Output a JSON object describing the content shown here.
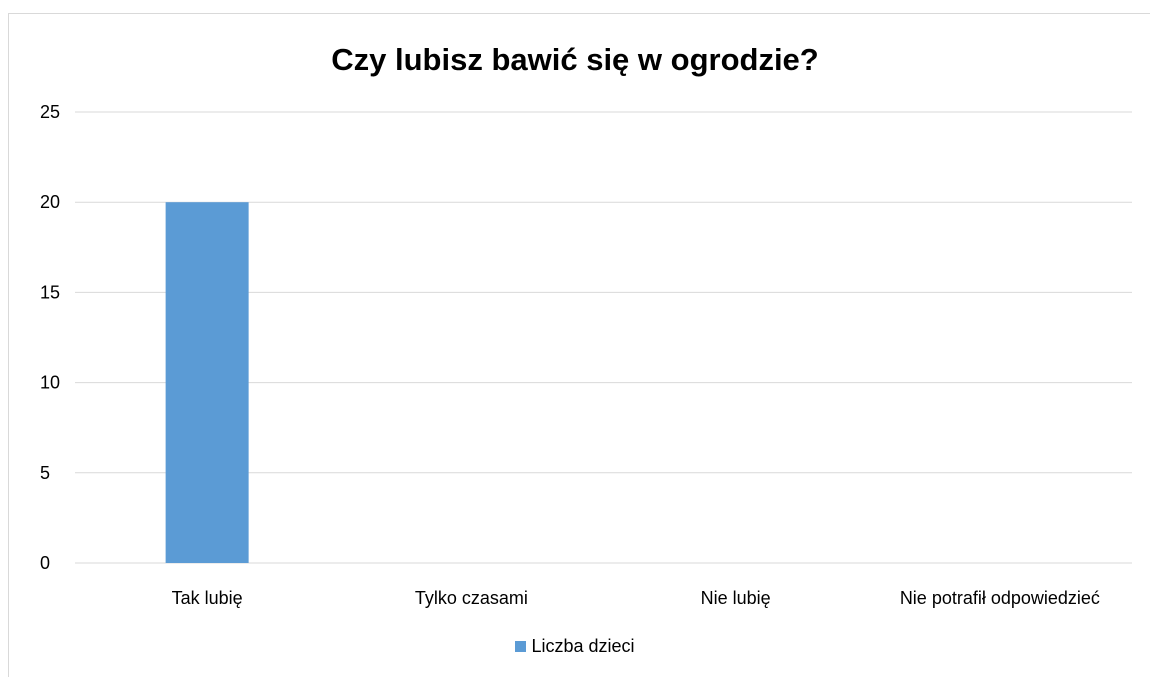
{
  "chart_data": {
    "type": "bar",
    "title": "Czy lubisz bawić się w ogrodzie?",
    "categories": [
      "Tak lubię",
      "Tylko czasami",
      "Nie lubię",
      "Nie potrafił odpowiedzieć"
    ],
    "series": [
      {
        "name": "Liczba dzieci",
        "values": [
          20,
          0,
          0,
          0
        ],
        "color": "#5b9bd5"
      }
    ],
    "ylim": [
      0,
      25
    ],
    "yticks": [
      "0",
      "5",
      "10",
      "15",
      "20",
      "25"
    ],
    "grid": true,
    "legend_position": "bottom"
  }
}
